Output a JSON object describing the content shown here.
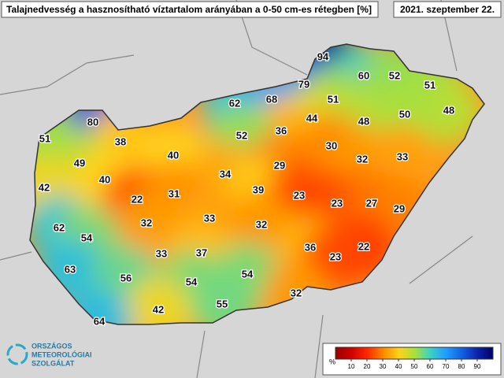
{
  "title": "Talajnedvesség a hasznosítható víztartalom arányában a 0-50 cm-es rétegben [%]",
  "date": "2021. szeptember 22.",
  "logo": [
    "ORSZÁGOS",
    "METEOROLÓGIAI",
    "SZOLGÁLAT"
  ],
  "legend": {
    "unit": "%",
    "ticks": [
      10,
      20,
      30,
      40,
      50,
      60,
      70,
      80,
      90
    ],
    "range": [
      0,
      100
    ],
    "colors": [
      "#9a0000",
      "#d40000",
      "#ff2a00",
      "#ff8a00",
      "#ffd21a",
      "#a8e03c",
      "#3ccfc4",
      "#1e9cff",
      "#1060e0",
      "#0a22a8",
      "#000060"
    ]
  },
  "stations": [
    94,
    60,
    52,
    51,
    79,
    62,
    68,
    51,
    48,
    80,
    44,
    48,
    50,
    51,
    36,
    52,
    38,
    30,
    40,
    49,
    32,
    33,
    29,
    40,
    34,
    42,
    22,
    31,
    39,
    23,
    23,
    27,
    29,
    32,
    33,
    62,
    54,
    32,
    33,
    37,
    36,
    22,
    23,
    63,
    56,
    54,
    54,
    32,
    55,
    42,
    64
  ]
}
